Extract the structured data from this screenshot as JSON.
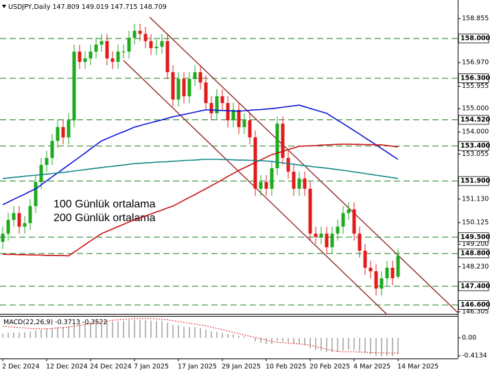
{
  "chart_data": [
    {
      "type": "candlestick",
      "title": "USDJPY,Daily",
      "categories": [
        "2 Dec 2024",
        null,
        null,
        null,
        null,
        null,
        null,
        null,
        "12 Dec 2024",
        null,
        null,
        null,
        null,
        null,
        null,
        null,
        "24 Dec 2024",
        null,
        null,
        null,
        null,
        null,
        null,
        null,
        "7 Jan 2025",
        null,
        null,
        null,
        null,
        null,
        null,
        null,
        "17 Jan 2025",
        null,
        null,
        null,
        null,
        null,
        null,
        null,
        "29 Jan 2025",
        null,
        null,
        null,
        null,
        null,
        null,
        null,
        "10 Feb 2025",
        null,
        null,
        null,
        null,
        null,
        null,
        null,
        "20 Feb 2025",
        null,
        null,
        null,
        null,
        null,
        null,
        null,
        "4 Mar 2025",
        null,
        null,
        null,
        null,
        null,
        null,
        null,
        "14 Mar 2025"
      ],
      "open": [
        149.3,
        149.65,
        150.24,
        150.53,
        149.95,
        150.1,
        150.83,
        151.86,
        152.59,
        152.89,
        153.62,
        154.21,
        153.77,
        154.5,
        157.44,
        157.0,
        157.15,
        157.44,
        157.74,
        157.89,
        157.15,
        157.0,
        157.44,
        157.44,
        158.03,
        158.33,
        158.2,
        157.89,
        157.59,
        157.65,
        157.89,
        156.56,
        155.39,
        156.27,
        155.53,
        156.27,
        156.56,
        156.12,
        155.24,
        154.8,
        155.53,
        155.24,
        154.5,
        154.95,
        154.21,
        154.5,
        153.77,
        151.57,
        151.86,
        151.57,
        152.45,
        154.36,
        152.89,
        152.3,
        151.57,
        152.01,
        151.57,
        149.65,
        149.51,
        149.65,
        149.07,
        149.65,
        149.95,
        150.53,
        150.69,
        149.65,
        148.92,
        148.19,
        148.04,
        147.3,
        147.74,
        148.19,
        147.809
      ],
      "high": [
        149.95,
        150.54,
        150.83,
        150.83,
        150.4,
        151.13,
        152.16,
        152.89,
        153.19,
        153.92,
        154.51,
        154.51,
        154.8,
        157.74,
        157.74,
        157.45,
        157.74,
        158.04,
        158.19,
        158.19,
        157.45,
        157.74,
        157.74,
        158.33,
        158.63,
        158.63,
        158.5,
        158.19,
        157.95,
        158.19,
        158.19,
        156.86,
        156.57,
        156.57,
        156.57,
        156.86,
        156.86,
        156.42,
        155.54,
        155.83,
        155.83,
        155.54,
        155.25,
        155.25,
        154.8,
        154.8,
        154.07,
        152.16,
        152.16,
        152.75,
        154.66,
        154.66,
        153.19,
        152.6,
        152.31,
        152.31,
        151.87,
        149.95,
        149.95,
        149.95,
        149.95,
        150.25,
        150.83,
        150.99,
        150.99,
        149.95,
        149.22,
        148.49,
        148.34,
        148.04,
        148.49,
        148.49,
        149.019
      ],
      "low": [
        149.0,
        149.35,
        149.94,
        149.65,
        149.65,
        149.8,
        150.53,
        151.56,
        152.29,
        152.59,
        153.32,
        153.47,
        153.47,
        154.2,
        156.7,
        156.7,
        156.85,
        157.14,
        157.44,
        156.85,
        156.7,
        156.7,
        157.14,
        157.14,
        157.73,
        157.9,
        157.59,
        157.29,
        157.29,
        157.35,
        156.26,
        155.09,
        155.09,
        155.23,
        155.23,
        155.97,
        155.82,
        154.94,
        154.5,
        154.5,
        154.94,
        154.2,
        154.2,
        153.91,
        153.91,
        153.47,
        151.27,
        151.27,
        151.27,
        151.27,
        152.15,
        152.59,
        152.0,
        151.27,
        151.27,
        151.27,
        149.35,
        149.21,
        149.21,
        148.77,
        148.77,
        149.35,
        149.65,
        150.23,
        149.35,
        148.62,
        147.89,
        147.74,
        147.0,
        147.0,
        147.44,
        147.44,
        147.715
      ],
      "close": [
        149.65,
        150.24,
        150.53,
        149.95,
        150.1,
        150.83,
        151.86,
        152.59,
        152.89,
        153.62,
        154.21,
        153.77,
        154.5,
        157.44,
        157.0,
        157.15,
        157.44,
        157.74,
        157.89,
        157.15,
        157.0,
        157.44,
        157.44,
        158.03,
        158.33,
        158.2,
        157.89,
        157.59,
        157.65,
        157.89,
        156.56,
        155.39,
        156.27,
        155.53,
        156.27,
        156.56,
        156.12,
        155.24,
        154.8,
        155.53,
        155.24,
        154.5,
        154.95,
        154.21,
        154.5,
        153.77,
        151.57,
        151.86,
        151.57,
        152.45,
        154.36,
        152.89,
        152.3,
        151.57,
        152.01,
        151.57,
        149.65,
        149.51,
        149.65,
        149.07,
        149.65,
        149.95,
        150.53,
        150.69,
        149.65,
        148.92,
        148.19,
        148.04,
        147.3,
        147.74,
        148.19,
        147.74,
        148.709
      ],
      "up_color": "#1faa1f",
      "down_color": "#e21b1b",
      "series": [
        {
          "color": "#0a14d8",
          "values": [
            150.89,
            151.0,
            151.12,
            151.23,
            151.34,
            151.46,
            151.57,
            151.74,
            151.91,
            152.08,
            152.25,
            152.42,
            152.59,
            152.76,
            152.93,
            153.1,
            153.28,
            153.45,
            153.62,
            153.72,
            153.82,
            153.92,
            154.01,
            154.11,
            154.21,
            154.27,
            154.34,
            154.4,
            154.46,
            154.52,
            154.59,
            154.65,
            154.7,
            154.75,
            154.8,
            154.85,
            154.9,
            154.95,
            154.94,
            154.93,
            154.92,
            154.91,
            154.9,
            154.89,
            154.91,
            154.93,
            154.95,
            154.96,
            154.98,
            155.0,
            155.03,
            155.06,
            155.09,
            155.12,
            155.15,
            155.08,
            155.01,
            154.94,
            154.87,
            154.8,
            154.65,
            154.5,
            154.36,
            154.21,
            154.06,
            153.91,
            153.75,
            153.6,
            153.45,
            153.29,
            153.14,
            152.98,
            152.83
          ]
        },
        {
          "name": "100 Günlük ortalama",
          "color": "#cc1111",
          "values": [
            148.77,
            148.76,
            148.76,
            148.75,
            148.75,
            148.74,
            148.74,
            148.73,
            148.72,
            148.72,
            148.71,
            148.71,
            148.7,
            148.86,
            149.02,
            149.18,
            149.34,
            149.5,
            149.65,
            149.75,
            149.85,
            149.95,
            150.05,
            150.15,
            150.24,
            150.32,
            150.41,
            150.49,
            150.58,
            150.66,
            150.75,
            150.83,
            150.95,
            151.08,
            151.2,
            151.32,
            151.45,
            151.57,
            151.7,
            151.83,
            151.96,
            152.1,
            152.23,
            152.36,
            152.47,
            152.58,
            152.7,
            152.81,
            152.92,
            153.03,
            153.1,
            153.17,
            153.25,
            153.32,
            153.39,
            153.4,
            153.41,
            153.42,
            153.44,
            153.45,
            153.46,
            153.47,
            153.48,
            153.48,
            153.47,
            153.47,
            153.46,
            153.46,
            153.45,
            153.45,
            153.42,
            153.39,
            153.36
          ]
        },
        {
          "name": "200 Günlük ortalama",
          "color": "#138888",
          "values": [
            152.01,
            152.03,
            152.06,
            152.08,
            152.11,
            152.13,
            152.15,
            152.18,
            152.2,
            152.22,
            152.25,
            152.27,
            152.3,
            152.33,
            152.36,
            152.39,
            152.42,
            152.45,
            152.48,
            152.51,
            152.53,
            152.56,
            152.59,
            152.62,
            152.65,
            152.66,
            152.68,
            152.69,
            152.71,
            152.72,
            152.73,
            152.75,
            152.76,
            152.78,
            152.79,
            152.8,
            152.82,
            152.83,
            152.83,
            152.83,
            152.82,
            152.82,
            152.81,
            152.8,
            152.8,
            152.79,
            152.78,
            152.77,
            152.76,
            152.74,
            152.71,
            152.68,
            152.65,
            152.62,
            152.59,
            152.56,
            152.53,
            152.5,
            152.48,
            152.45,
            152.42,
            152.39,
            152.36,
            152.33,
            152.29,
            152.26,
            152.22,
            152.19,
            152.15,
            152.12,
            152.08,
            152.05,
            152.01
          ]
        }
      ],
      "ylim": [
        146.217,
        159.649
      ],
      "yticks": [
        158.855,
        {
          "value": 156.97,
          "label": "156.970"
        },
        155.955,
        {
          "value": 155,
          "label": "155.000"
        },
        {
          "value": 154,
          "label": "154.000"
        },
        153.055,
        {
          "value": 151.13,
          "label": "151.130"
        },
        150.125,
        {
          "value": 149.2,
          "label": "149.200"
        },
        {
          "value": 148.23,
          "label": "148.230"
        },
        146.305
      ],
      "level_color": "#1e7d1e",
      "levels": [
        {
          "value": 158,
          "label": "158.000"
        },
        {
          "value": 156.3,
          "label": "156.300"
        },
        {
          "value": 154.52,
          "label": "154.520"
        },
        {
          "value": 153.4,
          "label": "153.400"
        },
        {
          "value": 151.9,
          "label": "151.900"
        },
        {
          "value": 149.5,
          "label": "149.500"
        },
        {
          "value": 148.8,
          "label": "148.800"
        },
        {
          "value": 147.4,
          "label": "147.400"
        },
        {
          "value": 146.6,
          "label": "146.600"
        }
      ]
    },
    {
      "type": "macd",
      "title": "MACD(22,26,9)",
      "series": [
        {
          "mark": "bar",
          "color": "#b8b8b8",
          "values": [
            0.1,
            0.12,
            0.13,
            0.12,
            0.13,
            0.15,
            0.17,
            0.19,
            0.21,
            0.23,
            0.25,
            0.25,
            0.27,
            0.32,
            0.34,
            0.35,
            0.37,
            0.38,
            0.4,
            0.39,
            0.38,
            0.39,
            0.39,
            0.41,
            0.42,
            0.42,
            0.41,
            0.4,
            0.39,
            0.39,
            0.35,
            0.3,
            0.29,
            0.26,
            0.25,
            0.25,
            0.23,
            0.19,
            0.15,
            0.14,
            0.12,
            0.09,
            0.08,
            0.05,
            0.04,
            0.01,
            -0.08,
            -0.11,
            -0.14,
            -0.14,
            -0.07,
            -0.08,
            -0.1,
            -0.14,
            -0.15,
            -0.17,
            -0.24,
            -0.28,
            -0.3,
            -0.33,
            -0.33,
            -0.32,
            -0.29,
            -0.27,
            -0.28,
            -0.31,
            -0.35,
            -0.38,
            -0.42,
            -0.43,
            -0.42,
            -0.42,
            -0.3713
          ]
        },
        {
          "mark": "line",
          "dash": true,
          "color": "#e01818",
          "values": [
            0.27,
            0.26,
            0.25,
            0.24,
            0.23,
            0.22,
            0.21,
            0.21,
            0.21,
            0.22,
            0.23,
            0.24,
            0.25,
            0.27,
            0.29,
            0.31,
            0.33,
            0.35,
            0.37,
            0.39,
            0.41,
            0.42,
            0.43,
            0.44,
            0.45,
            0.45,
            0.45,
            0.45,
            0.44,
            0.43,
            0.42,
            0.4,
            0.38,
            0.36,
            0.34,
            0.32,
            0.3,
            0.28,
            0.25,
            0.22,
            0.19,
            0.16,
            0.13,
            0.1,
            0.07,
            0.04,
            0.01,
            -0.02,
            -0.05,
            -0.08,
            -0.1,
            -0.11,
            -0.12,
            -0.13,
            -0.14,
            -0.15,
            -0.17,
            -0.2,
            -0.23,
            -0.26,
            -0.29,
            -0.31,
            -0.32,
            -0.32,
            -0.32,
            -0.33,
            -0.33,
            -0.34,
            -0.34,
            -0.35,
            -0.35,
            -0.35,
            -0.3522
          ]
        }
      ],
      "ylim": [
        -0.477,
        0.509
      ],
      "yticks": [
        {
          "value": 0,
          "label": "0.00"
        },
        -0.4134
      ]
    }
  ]
}
